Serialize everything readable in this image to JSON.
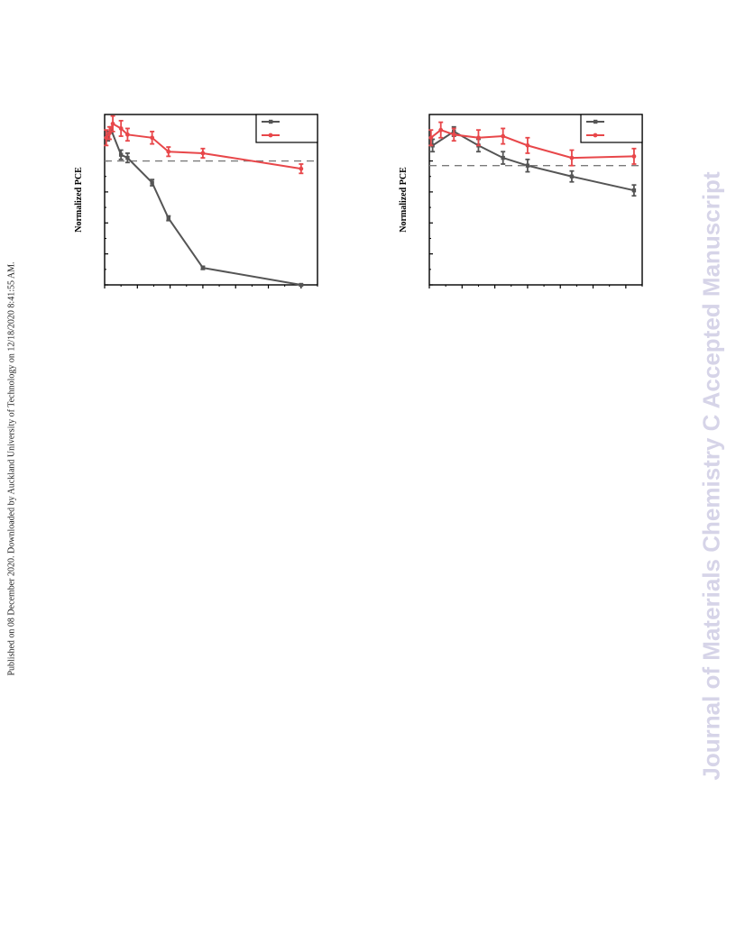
{
  "side_note": "Published on 08 December 2020. Downloaded by Auckland University of Technology on 12/18/2020 8:41:55 AM.",
  "watermark": "Journal of Materials Chemistry C Accepted Manuscript",
  "colors": {
    "series_dark": "#555555",
    "series_red": "#e8474a",
    "reference_line": "#7a7a7a"
  },
  "chart_data": [
    {
      "type": "line",
      "ylabel": "Normalized PCE",
      "xlim": [
        0,
        130
      ],
      "ylim": [
        0,
        1.1
      ],
      "reference_line_y": 0.8,
      "legend_position": "top-right",
      "grid": false,
      "series": [
        {
          "color": "#555555",
          "marker": "square",
          "x": [
            2,
            4,
            10,
            14,
            29,
            39,
            60,
            120
          ],
          "y": [
            0.96,
            1.0,
            0.84,
            0.82,
            0.66,
            0.43,
            0.11,
            0.0
          ],
          "err": [
            0.03,
            0.02,
            0.03,
            0.03,
            0.02,
            0.015,
            0.01,
            0.005
          ]
        },
        {
          "color": "#e8474a",
          "marker": "circle",
          "x": [
            1,
            3,
            5,
            10,
            14,
            29,
            39,
            60,
            120
          ],
          "y": [
            0.95,
            0.98,
            1.04,
            1.01,
            0.97,
            0.95,
            0.86,
            0.85,
            0.75
          ],
          "err": [
            0.05,
            0.04,
            0.05,
            0.05,
            0.04,
            0.04,
            0.03,
            0.03,
            0.03
          ]
        }
      ]
    },
    {
      "type": "line",
      "ylabel": "Normalized PCE",
      "xlim": [
        0,
        130
      ],
      "ylim": [
        0,
        1.1
      ],
      "reference_line_y": 0.77,
      "legend_position": "top-right",
      "grid": false,
      "series": [
        {
          "color": "#555555",
          "marker": "square",
          "x": [
            2,
            15,
            30,
            45,
            60,
            87,
            125
          ],
          "y": [
            0.9,
            0.99,
            0.9,
            0.82,
            0.77,
            0.7,
            0.61
          ],
          "err": [
            0.04,
            0.03,
            0.04,
            0.04,
            0.04,
            0.035,
            0.035
          ]
        },
        {
          "color": "#e8474a",
          "marker": "circle",
          "x": [
            1,
            7,
            15,
            30,
            45,
            60,
            87,
            125
          ],
          "y": [
            0.95,
            1.0,
            0.97,
            0.95,
            0.96,
            0.9,
            0.82,
            0.83
          ],
          "err": [
            0.05,
            0.05,
            0.04,
            0.05,
            0.05,
            0.05,
            0.05,
            0.05
          ]
        }
      ]
    }
  ]
}
